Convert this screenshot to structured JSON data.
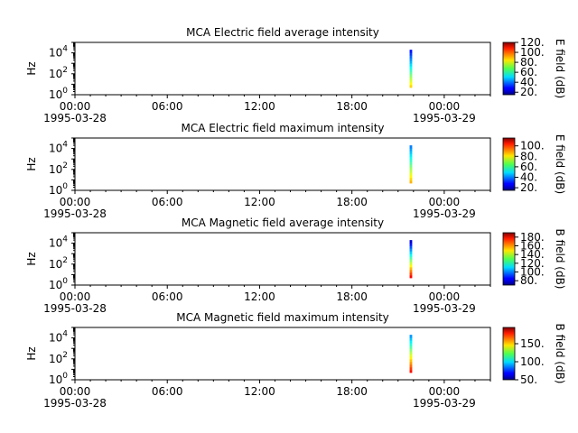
{
  "chart_data": [
    {
      "type": "heatmap",
      "title": "MCA  Electric field average intensity",
      "ylabel": "Hz",
      "yscale": "log",
      "ylim": [
        1,
        100000
      ],
      "yticks": [
        {
          "exp": "0"
        },
        {
          "exp": "2"
        },
        {
          "exp": "4"
        }
      ],
      "xlim": [
        "1995-03-28 00:00",
        "1995-03-29 03:00"
      ],
      "xticks": [
        "00:00",
        "06:00",
        "12:00",
        "18:00",
        "00:00"
      ],
      "xdates": [
        "1995-03-28",
        "1995-03-29"
      ],
      "colorbar": {
        "label": "E field (dB)",
        "range": [
          15,
          120
        ],
        "ticks": [
          "20.",
          "40.",
          "60.",
          "80.",
          "100.",
          "120."
        ],
        "tick_values": [
          20,
          40,
          60,
          80,
          100,
          120
        ]
      },
      "data_block": {
        "time_start": "1995-03-28 21:45",
        "time_end": "1995-03-28 21:55",
        "freq_range": [
          5,
          20000
        ],
        "value_low_freq": 85,
        "value_high_freq": 30
      }
    },
    {
      "type": "heatmap",
      "title": "MCA  Electric field maximum intensity",
      "ylabel": "Hz",
      "yscale": "log",
      "ylim": [
        1,
        100000
      ],
      "yticks": [
        {
          "exp": "0"
        },
        {
          "exp": "2"
        },
        {
          "exp": "4"
        }
      ],
      "xlim": [
        "1995-03-28 00:00",
        "1995-03-29 03:00"
      ],
      "xticks": [
        "00:00",
        "06:00",
        "12:00",
        "18:00",
        "00:00"
      ],
      "xdates": [
        "1995-03-28",
        "1995-03-29"
      ],
      "colorbar": {
        "label": "E field (dB)",
        "range": [
          15,
          115
        ],
        "ticks": [
          "20.",
          "40.",
          "60.",
          "80.",
          "100."
        ],
        "tick_values": [
          20,
          40,
          60,
          80,
          100
        ]
      },
      "data_block": {
        "time_start": "1995-03-28 21:45",
        "time_end": "1995-03-28 21:55",
        "freq_range": [
          5,
          20000
        ],
        "value_low_freq": 85,
        "value_high_freq": 40
      }
    },
    {
      "type": "heatmap",
      "title": "MCA  Magnetic field average intensity",
      "ylabel": "Hz",
      "yscale": "log",
      "ylim": [
        1,
        100000
      ],
      "yticks": [
        {
          "exp": "0"
        },
        {
          "exp": "2"
        },
        {
          "exp": "4"
        }
      ],
      "xlim": [
        "1995-03-28 00:00",
        "1995-03-29 03:00"
      ],
      "xticks": [
        "00:00",
        "06:00",
        "12:00",
        "18:00",
        "00:00"
      ],
      "xdates": [
        "1995-03-28",
        "1995-03-29"
      ],
      "colorbar": {
        "label": "B field (dB)",
        "range": [
          70,
          190
        ],
        "ticks": [
          "80.",
          "100.",
          "120.",
          "140.",
          "160.",
          "180."
        ],
        "tick_values": [
          80,
          100,
          120,
          140,
          160,
          180
        ]
      },
      "data_block": {
        "time_start": "1995-03-28 21:45",
        "time_end": "1995-03-28 21:55",
        "freq_range": [
          5,
          20000
        ],
        "value_low_freq": 175,
        "value_high_freq": 80
      }
    },
    {
      "type": "heatmap",
      "title": "MCA  Magnetic field maximum intensity",
      "ylabel": "Hz",
      "yscale": "log",
      "ylim": [
        1,
        100000
      ],
      "yticks": [
        {
          "exp": "0"
        },
        {
          "exp": "2"
        },
        {
          "exp": "4"
        }
      ],
      "xlim": [
        "1995-03-28 00:00",
        "1995-03-29 03:00"
      ],
      "xticks": [
        "00:00",
        "06:00",
        "12:00",
        "18:00",
        "00:00"
      ],
      "xdates": [
        "1995-03-28",
        "1995-03-29"
      ],
      "colorbar": {
        "label": "B field (dB)",
        "range": [
          50,
          195
        ],
        "ticks": [
          "50.",
          "100.",
          "150."
        ],
        "tick_values": [
          50,
          100,
          150
        ]
      },
      "data_block": {
        "time_start": "1995-03-28 21:45",
        "time_end": "1995-03-28 21:55",
        "freq_range": [
          5,
          20000
        ],
        "value_low_freq": 175,
        "value_high_freq": 90
      }
    }
  ],
  "colors": {
    "axis": "#000000",
    "background": "#ffffff"
  }
}
